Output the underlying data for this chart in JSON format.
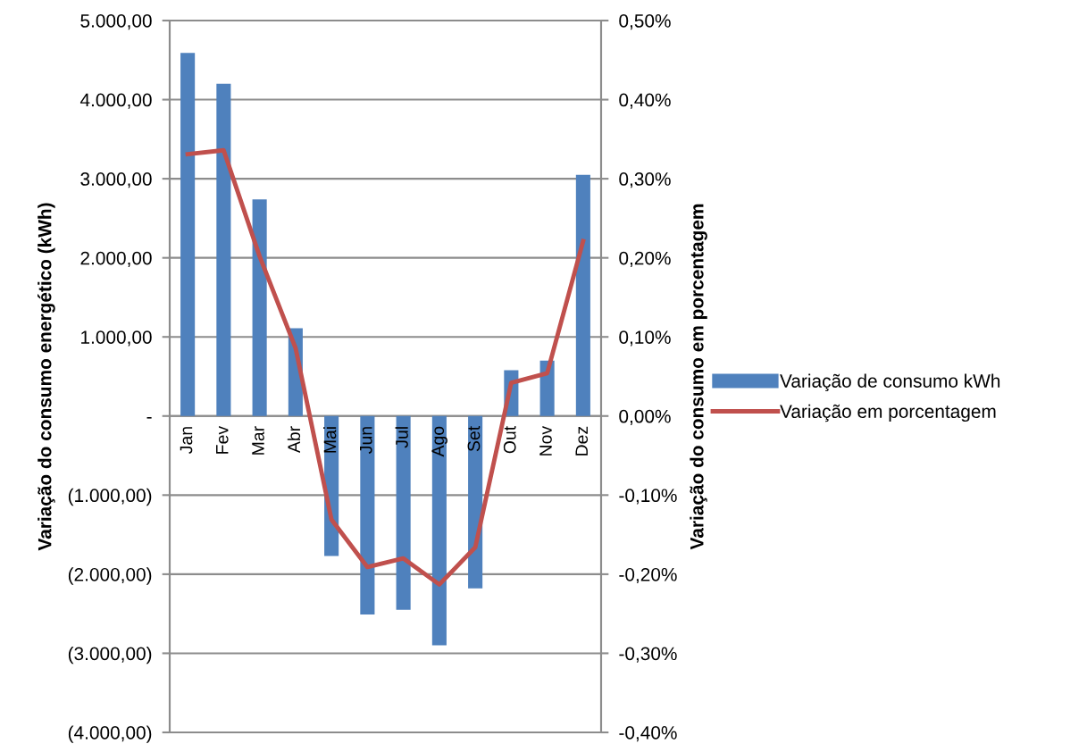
{
  "chart_data": {
    "type": "bar",
    "categories": [
      "Jan",
      "Fev",
      "Mar",
      "Abr",
      "Mai",
      "Jun",
      "Jul",
      "Ago",
      "Set",
      "Out",
      "Nov",
      "Dez"
    ],
    "ylabel": "Variação do consumo energético (kWh)",
    "y2label": "Variação do consumo em porcentagem",
    "series": [
      {
        "name": "Variação de consumo kWh",
        "color": "#4f81bd",
        "values": [
          4590,
          4200,
          2740,
          1110,
          -1770,
          -2510,
          -2450,
          -2900,
          -2180,
          580,
          700,
          3050
        ]
      },
      {
        "name": "Variação em porcentagem",
        "type": "line",
        "axis": "y2",
        "color": "#c0504d",
        "values": [
          0.331,
          0.336,
          0.202,
          0.086,
          -0.131,
          -0.191,
          -0.18,
          -0.213,
          -0.166,
          0.042,
          0.054,
          0.221
        ]
      }
    ],
    "ylim": [
      -4000,
      5000
    ],
    "yticks": [
      {
        "value": -4000,
        "label": "(4.000,00)"
      },
      {
        "value": -3000,
        "label": "(3.000,00)"
      },
      {
        "value": -2000,
        "label": "(2.000,00)"
      },
      {
        "value": -1000,
        "label": "(1.000,00)"
      },
      {
        "value": 0,
        "label": "-"
      },
      {
        "value": 1000,
        "label": "1.000,00"
      },
      {
        "value": 2000,
        "label": "2.000,00"
      },
      {
        "value": 3000,
        "label": "3.000,00"
      },
      {
        "value": 4000,
        "label": "4.000,00"
      },
      {
        "value": 5000,
        "label": "5.000,00"
      }
    ],
    "y2lim": [
      -0.4,
      0.5
    ],
    "y2ticks": [
      {
        "value": -0.4,
        "label": "-0,40%"
      },
      {
        "value": -0.3,
        "label": "-0,30%"
      },
      {
        "value": -0.2,
        "label": "-0,20%"
      },
      {
        "value": -0.1,
        "label": "-0,10%"
      },
      {
        "value": 0,
        "label": "0,00%"
      },
      {
        "value": 0.1,
        "label": "0,10%"
      },
      {
        "value": 0.2,
        "label": "0,20%"
      },
      {
        "value": 0.3,
        "label": "0,30%"
      },
      {
        "value": 0.4,
        "label": "0,40%"
      },
      {
        "value": 0.5,
        "label": "0,50%"
      }
    ],
    "grid": "y",
    "legend": "right",
    "marker": "none",
    "line_style": "solid"
  }
}
